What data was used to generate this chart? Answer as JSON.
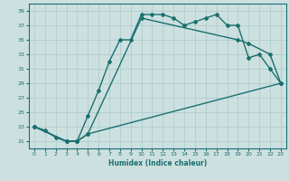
{
  "xlabel": "Humidex (Indice chaleur)",
  "background_color": "#cde0e0",
  "grid_color": "#aac8c8",
  "line_color": "#1a7070",
  "xlim": [
    -0.5,
    23.5
  ],
  "ylim": [
    20.0,
    40.0
  ],
  "yticks": [
    21,
    23,
    25,
    27,
    29,
    31,
    33,
    35,
    37,
    39
  ],
  "xticks": [
    0,
    1,
    2,
    3,
    4,
    5,
    6,
    7,
    8,
    9,
    10,
    11,
    12,
    13,
    14,
    15,
    16,
    17,
    18,
    19,
    20,
    21,
    22,
    23
  ],
  "line1": {
    "x": [
      0,
      1,
      2,
      3,
      4,
      5,
      6,
      7,
      8,
      9,
      10,
      11,
      12,
      13,
      14,
      15,
      16,
      17,
      18,
      19,
      20,
      21,
      22,
      23
    ],
    "y": [
      23,
      22.5,
      21.5,
      21,
      21,
      24.5,
      28,
      32,
      35,
      35,
      38.5,
      38.5,
      38.5,
      38,
      37,
      37.5,
      38,
      38.5,
      37,
      37,
      32.5,
      33,
      31,
      29
    ]
  },
  "line2": {
    "x": [
      0,
      3,
      4,
      5,
      10,
      19,
      20,
      22,
      23
    ],
    "y": [
      23,
      21,
      21,
      22,
      38,
      35,
      34.5,
      33,
      29
    ]
  },
  "line3": {
    "x": [
      0,
      3,
      4,
      5,
      23
    ],
    "y": [
      23,
      21,
      21,
      22,
      29
    ]
  },
  "marker": "D",
  "markersize": 2.0,
  "linewidth": 1.0
}
